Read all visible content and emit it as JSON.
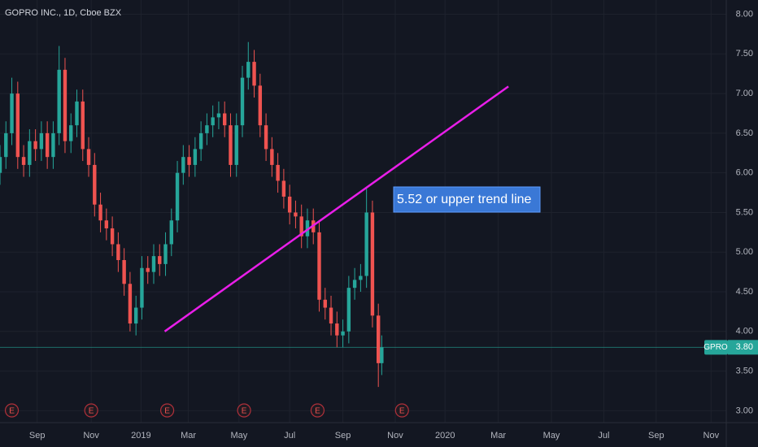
{
  "chart_data": {
    "type": "candlestick",
    "title": "GOPRO INC., 1D, Cboe BZX",
    "x": [
      0,
      7,
      14,
      21,
      28,
      35,
      42,
      49,
      56,
      63,
      70,
      77,
      84,
      91,
      98,
      105,
      112,
      119,
      126,
      133,
      140,
      147,
      154,
      161,
      168,
      175,
      182,
      189,
      196,
      203,
      210,
      217,
      224,
      231,
      238,
      245,
      252,
      259,
      266,
      273,
      280,
      287,
      294,
      301,
      308,
      315,
      322,
      329,
      336,
      343,
      350,
      357,
      364,
      371,
      378,
      385,
      392,
      399,
      406,
      413,
      420,
      427,
      434,
      441,
      448,
      452
    ],
    "open": [
      6.0,
      6.2,
      6.5,
      7.0,
      6.2,
      6.1,
      6.4,
      6.3,
      6.5,
      6.2,
      6.5,
      7.3,
      6.4,
      6.6,
      6.9,
      6.3,
      6.1,
      5.6,
      5.4,
      5.3,
      5.1,
      4.9,
      4.6,
      4.1,
      4.3,
      4.8,
      4.75,
      4.95,
      4.85,
      5.1,
      5.4,
      6.0,
      6.2,
      6.1,
      6.3,
      6.5,
      6.6,
      6.7,
      6.75,
      6.6,
      6.1,
      6.6,
      7.2,
      7.4,
      7.1,
      6.6,
      6.3,
      6.1,
      5.9,
      5.7,
      5.5,
      5.45,
      5.2,
      5.4,
      5.25,
      4.4,
      4.3,
      4.1,
      3.95,
      4.0,
      4.55,
      4.65,
      4.7,
      5.5,
      4.2,
      3.6
    ],
    "high": [
      6.35,
      6.65,
      7.2,
      7.15,
      6.35,
      6.55,
      6.55,
      6.65,
      6.65,
      6.65,
      7.6,
      7.45,
      6.75,
      7.05,
      7.05,
      6.45,
      6.25,
      5.75,
      5.55,
      5.45,
      5.25,
      5.05,
      4.75,
      4.45,
      4.95,
      4.95,
      5.1,
      5.1,
      5.25,
      5.55,
      6.15,
      6.35,
      6.35,
      6.45,
      6.65,
      6.75,
      6.85,
      6.9,
      6.9,
      6.75,
      6.75,
      7.35,
      7.65,
      7.55,
      7.25,
      6.75,
      6.45,
      6.25,
      6.05,
      5.85,
      5.65,
      5.6,
      5.55,
      5.55,
      5.4,
      4.55,
      4.45,
      4.25,
      4.15,
      4.7,
      4.8,
      4.85,
      5.8,
      5.65,
      4.35,
      3.95
    ],
    "low": [
      5.85,
      6.05,
      6.35,
      6.05,
      5.95,
      5.95,
      6.15,
      6.15,
      6.05,
      6.05,
      6.35,
      6.25,
      6.25,
      6.45,
      6.15,
      5.95,
      5.45,
      5.25,
      5.15,
      4.95,
      4.75,
      4.45,
      4.0,
      3.95,
      4.15,
      4.6,
      4.6,
      4.7,
      4.7,
      4.95,
      5.25,
      5.85,
      5.95,
      5.95,
      6.15,
      6.35,
      6.45,
      6.55,
      6.45,
      5.95,
      5.95,
      6.45,
      7.05,
      6.95,
      6.45,
      6.15,
      5.95,
      5.75,
      5.55,
      5.35,
      5.3,
      5.05,
      5.05,
      5.1,
      4.25,
      4.15,
      3.95,
      3.8,
      3.8,
      3.85,
      4.4,
      4.5,
      4.55,
      4.05,
      3.3,
      3.45
    ],
    "close": [
      6.2,
      6.5,
      7.0,
      6.2,
      6.1,
      6.4,
      6.3,
      6.5,
      6.2,
      6.5,
      7.3,
      6.4,
      6.6,
      6.9,
      6.3,
      6.1,
      5.6,
      5.4,
      5.3,
      5.1,
      4.9,
      4.6,
      4.1,
      4.3,
      4.8,
      4.75,
      4.95,
      4.85,
      5.1,
      5.4,
      6.0,
      6.2,
      6.1,
      6.3,
      6.5,
      6.6,
      6.7,
      6.75,
      6.6,
      6.1,
      6.6,
      7.2,
      7.4,
      7.1,
      6.6,
      6.3,
      6.1,
      5.9,
      5.7,
      5.5,
      5.45,
      5.2,
      5.4,
      5.25,
      4.4,
      4.3,
      4.1,
      3.95,
      4.0,
      4.55,
      4.65,
      4.7,
      5.5,
      4.2,
      3.6,
      3.8
    ],
    "up_color": "#26a69a",
    "down_color": "#ef5350",
    "xlim": [
      0,
      860
    ],
    "xticks": [
      {
        "value": 44,
        "label": "Sep"
      },
      {
        "value": 108,
        "label": "Nov"
      },
      {
        "value": 167,
        "label": "2019"
      },
      {
        "value": 223,
        "label": "Mar"
      },
      {
        "value": 283,
        "label": "May"
      },
      {
        "value": 343,
        "label": "Jul"
      },
      {
        "value": 406,
        "label": "Sep"
      },
      {
        "value": 468,
        "label": "Nov"
      },
      {
        "value": 527,
        "label": "2020"
      },
      {
        "value": 590,
        "label": "Mar"
      },
      {
        "value": 653,
        "label": "May"
      },
      {
        "value": 715,
        "label": "Jul"
      },
      {
        "value": 777,
        "label": "Sep"
      },
      {
        "value": 842,
        "label": "Nov"
      }
    ],
    "ylim": [
      2.85,
      8.18
    ],
    "yticks": [
      {
        "value": 3,
        "label": "3.00"
      },
      {
        "value": 3.5,
        "label": "3.50"
      },
      {
        "value": 4,
        "label": "4.00"
      },
      {
        "value": 4.5,
        "label": "4.50"
      },
      {
        "value": 5,
        "label": "5.00"
      },
      {
        "value": 5.5,
        "label": "5.50"
      },
      {
        "value": 6,
        "label": "6.00"
      },
      {
        "value": 6.5,
        "label": "6.50"
      },
      {
        "value": 7,
        "label": "7.00"
      },
      {
        "value": 7.5,
        "label": "7.50"
      },
      {
        "value": 8,
        "label": "8.00"
      }
    ],
    "grid": true,
    "last_price": {
      "name": "GPRO",
      "value": 3.8,
      "label": "3.80",
      "color": "#26a69a"
    },
    "trend_line": {
      "x": [
        195,
        602
      ],
      "y": [
        4.0,
        7.09
      ],
      "color": "#e91ee9"
    },
    "annotation": "5.52 or upper trend line",
    "earnings": {
      "label": "E",
      "x": [
        14,
        108,
        198,
        289,
        376,
        476
      ]
    }
  }
}
